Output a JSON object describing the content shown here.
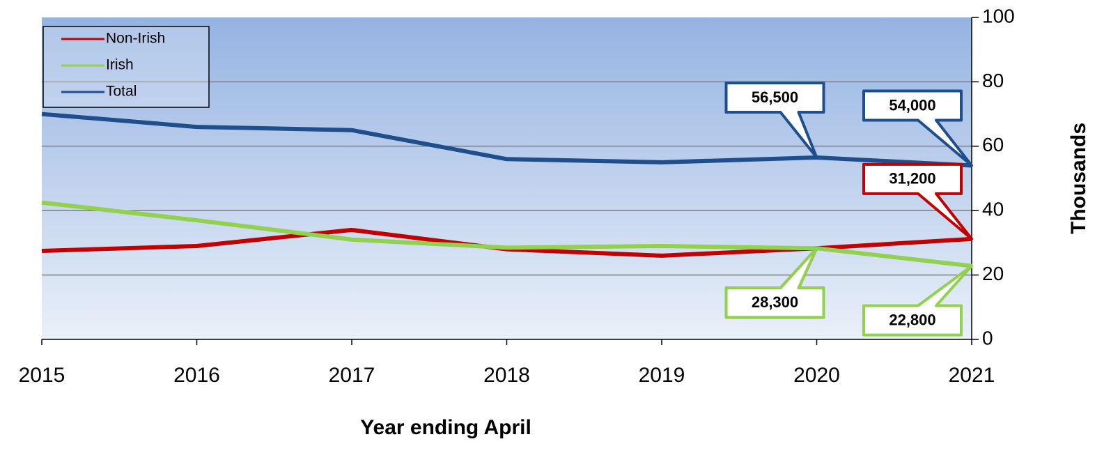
{
  "chart_data": {
    "type": "line",
    "x_label": "Year ending April",
    "y_label": "Thousands",
    "x": [
      2015,
      2016,
      2017,
      2018,
      2019,
      2020,
      2021
    ],
    "xlim": [
      2015,
      2021
    ],
    "xticks": [
      2015,
      2016,
      2017,
      2018,
      2019,
      2020,
      2021
    ],
    "ylim": [
      0,
      100
    ],
    "yticks": [
      0,
      20,
      40,
      60,
      80,
      100
    ],
    "grid": true,
    "legend": "upper left",
    "series": [
      {
        "name": "Non-Irish",
        "color": "#c00000",
        "values": [
          27.5,
          29,
          34,
          28,
          26,
          28.3,
          31.2
        ],
        "value_labels": [
          null,
          null,
          null,
          null,
          null,
          "28,300",
          "31,200"
        ]
      },
      {
        "name": "Irish",
        "color": "#92d050",
        "values": [
          42.5,
          37,
          31,
          28.5,
          29,
          28.3,
          22.8
        ],
        "value_labels": [
          null,
          null,
          null,
          null,
          null,
          "28,300",
          "22,800"
        ]
      },
      {
        "name": "Total",
        "color": "#1f4e8c",
        "values": [
          70,
          66,
          65,
          56,
          55,
          56.5,
          54
        ],
        "value_labels": [
          null,
          null,
          null,
          null,
          null,
          "56,500",
          "54,000"
        ]
      }
    ]
  }
}
